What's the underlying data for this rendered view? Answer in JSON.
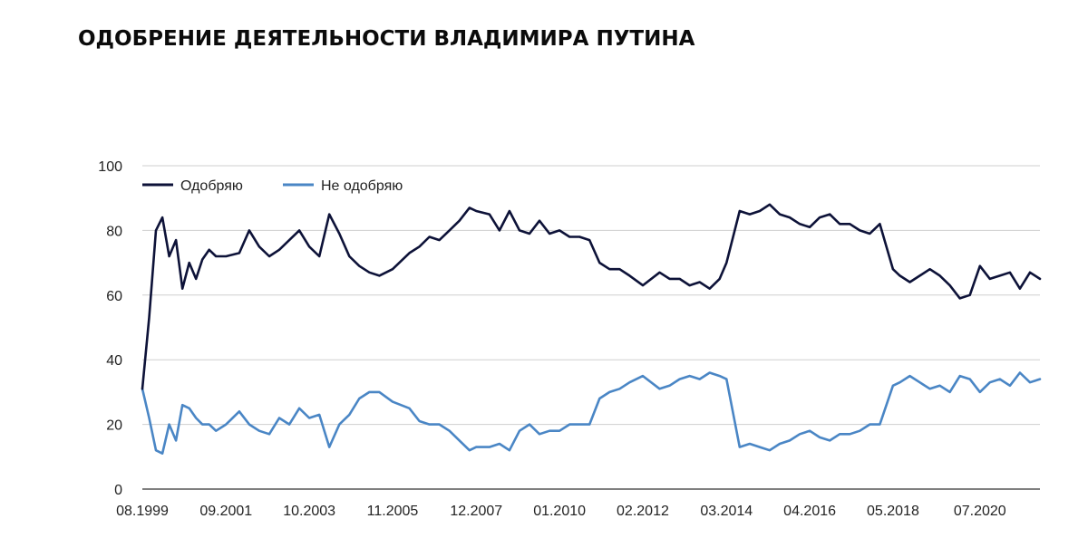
{
  "chart_data": {
    "type": "line",
    "title": "ОДОБРЕНИЕ ДЕЯТЕЛЬНОСТИ ВЛАДИМИРА ПУТИНА",
    "xlabel": "",
    "ylabel": "",
    "ylim": [
      0,
      100
    ],
    "yticks": [
      "0",
      "20",
      "40",
      "60",
      "80",
      "100"
    ],
    "xlim": [
      1999.58,
      2022.0
    ],
    "xticks": [
      {
        "label": "08.1999",
        "x": 1999.58
      },
      {
        "label": "09.2001",
        "x": 2001.67
      },
      {
        "label": "10.2003",
        "x": 2003.75
      },
      {
        "label": "11.2005",
        "x": 2005.83
      },
      {
        "label": "12.2007",
        "x": 2007.92
      },
      {
        "label": "01.2010",
        "x": 2010.0
      },
      {
        "label": "02.2012",
        "x": 2012.08
      },
      {
        "label": "03.2014",
        "x": 2014.17
      },
      {
        "label": "04.2016",
        "x": 2016.25
      },
      {
        "label": "05.2018",
        "x": 2018.33
      },
      {
        "label": "07.2020",
        "x": 2020.5
      }
    ],
    "grid": true,
    "legend": "top-left",
    "x": [
      1999.58,
      1999.75,
      1999.92,
      2000.08,
      2000.25,
      2000.42,
      2000.58,
      2000.75,
      2000.92,
      2001.08,
      2001.25,
      2001.42,
      2001.67,
      2002.0,
      2002.25,
      2002.5,
      2002.75,
      2003.0,
      2003.25,
      2003.5,
      2003.75,
      2004.0,
      2004.25,
      2004.5,
      2004.75,
      2005.0,
      2005.25,
      2005.5,
      2005.83,
      2006.25,
      2006.5,
      2006.75,
      2007.0,
      2007.25,
      2007.5,
      2007.75,
      2007.92,
      2008.25,
      2008.5,
      2008.75,
      2009.0,
      2009.25,
      2009.5,
      2009.75,
      2010.0,
      2010.25,
      2010.5,
      2010.75,
      2011.0,
      2011.25,
      2011.5,
      2011.75,
      2012.08,
      2012.5,
      2012.75,
      2013.0,
      2013.25,
      2013.5,
      2013.75,
      2014.0,
      2014.17,
      2014.5,
      2014.75,
      2015.0,
      2015.25,
      2015.5,
      2015.75,
      2016.0,
      2016.25,
      2016.5,
      2016.75,
      2017.0,
      2017.25,
      2017.5,
      2017.75,
      2018.0,
      2018.33,
      2018.5,
      2018.75,
      2019.0,
      2019.25,
      2019.5,
      2019.75,
      2020.0,
      2020.25,
      2020.5,
      2020.75,
      2021.0,
      2021.25,
      2021.5,
      2021.75,
      2022.0
    ],
    "series": [
      {
        "name": "Одобряю",
        "color": "#0d1238",
        "values": [
          31,
          53,
          80,
          84,
          72,
          77,
          62,
          70,
          65,
          71,
          74,
          72,
          72,
          73,
          80,
          75,
          72,
          74,
          77,
          80,
          75,
          72,
          85,
          79,
          72,
          69,
          67,
          66,
          68,
          73,
          75,
          78,
          77,
          80,
          83,
          87,
          86,
          85,
          80,
          86,
          80,
          79,
          83,
          79,
          80,
          78,
          78,
          77,
          70,
          68,
          68,
          66,
          63,
          67,
          65,
          65,
          63,
          64,
          62,
          65,
          70,
          86,
          85,
          86,
          88,
          85,
          84,
          82,
          81,
          84,
          85,
          82,
          82,
          80,
          79,
          82,
          68,
          66,
          64,
          66,
          68,
          66,
          63,
          59,
          60,
          69,
          65,
          66,
          67,
          62,
          67,
          65
        ]
      },
      {
        "name": "Не одобряю",
        "color": "#4a86c5",
        "values": [
          31,
          22,
          12,
          11,
          20,
          15,
          26,
          25,
          22,
          20,
          20,
          18,
          20,
          24,
          20,
          18,
          17,
          22,
          20,
          25,
          22,
          23,
          13,
          20,
          23,
          28,
          30,
          30,
          27,
          25,
          21,
          20,
          20,
          18,
          15,
          12,
          13,
          13,
          14,
          12,
          18,
          20,
          17,
          18,
          18,
          20,
          20,
          20,
          28,
          30,
          31,
          33,
          35,
          31,
          32,
          34,
          35,
          34,
          36,
          35,
          34,
          13,
          14,
          13,
          12,
          14,
          15,
          17,
          18,
          16,
          15,
          17,
          17,
          18,
          20,
          20,
          32,
          33,
          35,
          33,
          31,
          32,
          30,
          35,
          34,
          30,
          33,
          34,
          32,
          36,
          33,
          34
        ]
      }
    ]
  }
}
